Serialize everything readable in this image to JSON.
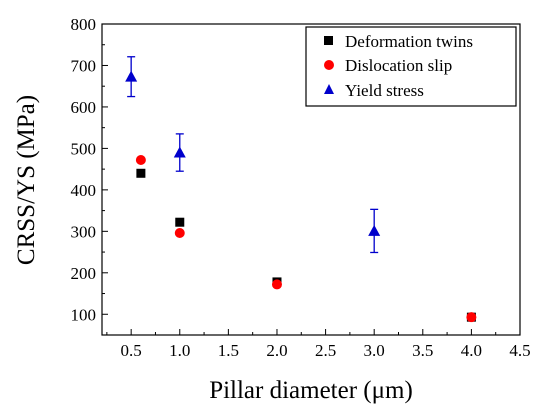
{
  "chart_data": {
    "type": "scatter",
    "xlabel": "Pillar diameter (μm)",
    "ylabel": "CRSS/YS (MPa)",
    "xlim": [
      0.2,
      4.5
    ],
    "ylim": [
      50,
      800
    ],
    "xticks": [
      "0.5",
      "1.0",
      "1.5",
      "2.0",
      "2.5",
      "3.0",
      "3.5",
      "4.0",
      "4.5"
    ],
    "yticks": [
      "100",
      "200",
      "300",
      "400",
      "500",
      "600",
      "700",
      "800"
    ],
    "legend_position": "top-right",
    "series": [
      {
        "name": "Deformation twins",
        "marker": "square",
        "color": "#000000",
        "points": [
          {
            "x": 0.6,
            "y": 440
          },
          {
            "x": 1.0,
            "y": 322
          },
          {
            "x": 2.0,
            "y": 178
          },
          {
            "x": 4.0,
            "y": 93
          }
        ]
      },
      {
        "name": "Dislocation slip",
        "marker": "circle",
        "color": "#ff0000",
        "points": [
          {
            "x": 0.6,
            "y": 472
          },
          {
            "x": 1.0,
            "y": 296
          },
          {
            "x": 2.0,
            "y": 172
          },
          {
            "x": 4.0,
            "y": 93
          }
        ]
      },
      {
        "name": "Yield stress",
        "marker": "triangle",
        "color": "#0000cc",
        "points": [
          {
            "x": 0.5,
            "y": 673,
            "err": 48
          },
          {
            "x": 1.0,
            "y": 490,
            "err": 45
          },
          {
            "x": 3.0,
            "y": 301,
            "err": 52
          }
        ]
      }
    ]
  }
}
